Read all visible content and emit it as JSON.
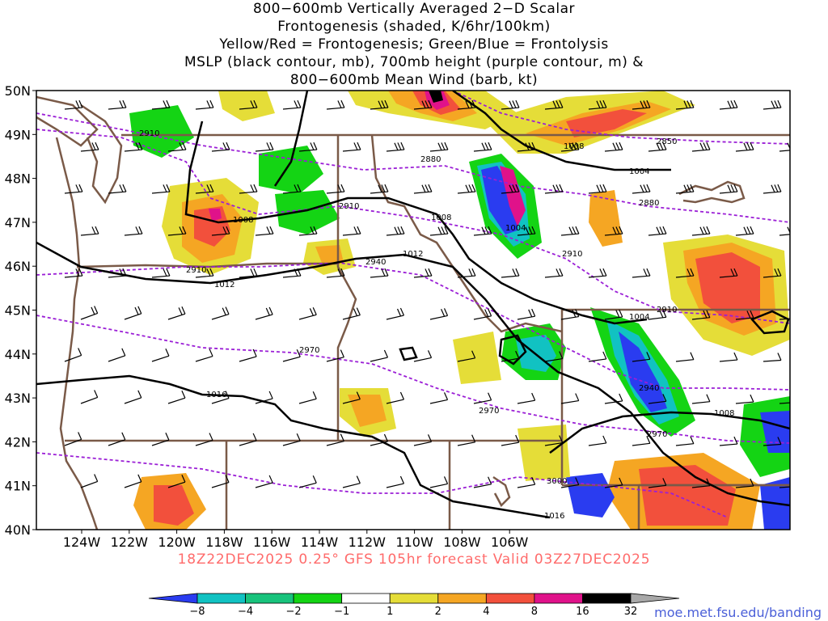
{
  "title": {
    "line1": "800−600mb Vertically Averaged 2−D Scalar",
    "line2": "Frontogenesis (shaded, K/6hr/100km)",
    "line3": "Yellow/Red = Frontogenesis;  Green/Blue = Frontolysis",
    "line4": "MSLP (black contour, mb), 700mb height (purple contour, m) &",
    "line5": "800−600mb Mean Wind (barb, kt)"
  },
  "lat_labels": [
    "50N",
    "49N",
    "48N",
    "47N",
    "46N",
    "45N",
    "44N",
    "43N",
    "42N",
    "41N",
    "40N"
  ],
  "lon_labels": [
    "124W",
    "122W",
    "120W",
    "118W",
    "116W",
    "114W",
    "112W",
    "110W",
    "108W",
    "106W"
  ],
  "forecast_line": "18Z22DEC2025 0.25° GFS 105hr forecast Valid 03Z27DEC2025",
  "credit": "moe.met.fsu.edu/banding",
  "colorbar": {
    "ticks": [
      "−8",
      "−4",
      "−2",
      "−1",
      "1",
      "2",
      "4",
      "8",
      "16",
      "32"
    ],
    "colors": [
      "#2a3cf0",
      "#11c2c2",
      "#18c37c",
      "#14d414",
      "#ffffff",
      "#e5dd38",
      "#f5a623",
      "#f2503c",
      "#e0128a",
      "#000000",
      "#a8a8a8"
    ]
  },
  "mslp_labels": [
    "1008",
    "1004",
    "1008",
    "1004",
    "1012",
    "1012",
    "1016",
    "1008",
    "1004",
    "1016",
    "1008"
  ],
  "height_labels": [
    "2910",
    "2880",
    "2850",
    "2910",
    "2880",
    "2940",
    "2910",
    "2910",
    "2970",
    "2940",
    "2970",
    "2970",
    "3000",
    "2910"
  ],
  "shading_colors": {
    "yellow": "#e5dd38",
    "orange": "#f5a623",
    "red": "#f2503c",
    "magenta": "#e0128a",
    "black": "#000000",
    "green": "#14d414",
    "teal": "#18c37c",
    "cyan": "#11c2c2",
    "blue": "#2a3cf0"
  },
  "line_colors": {
    "mslp": "#000000",
    "height": "#9b1fd6",
    "borders": "#7a5a48"
  }
}
